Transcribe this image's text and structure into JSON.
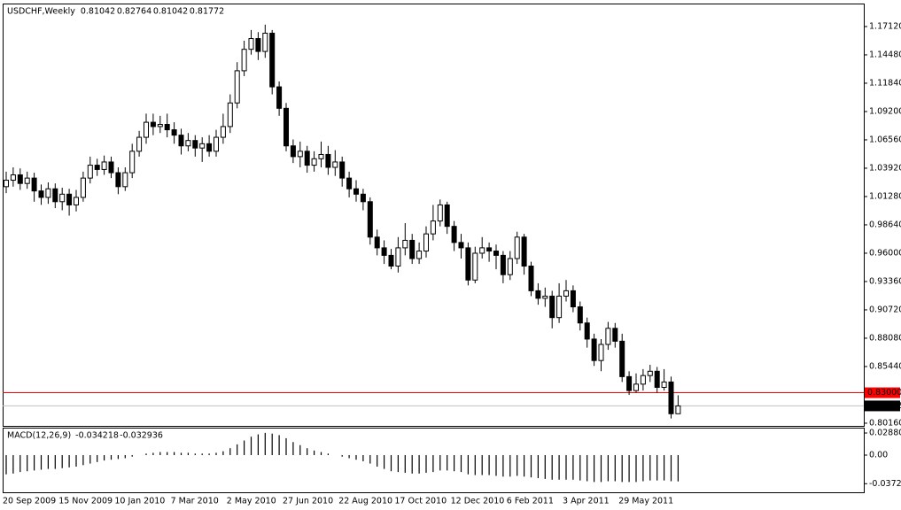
{
  "chart_data": [
    {
      "type": "candlestick",
      "title": "USDCHF,Weekly",
      "categories": [
        "20 Sep 2009",
        null,
        null,
        null,
        null,
        null,
        null,
        null,
        "15 Nov 2009",
        null,
        null,
        null,
        null,
        null,
        null,
        null,
        "10 Jan 2010",
        null,
        null,
        null,
        null,
        null,
        null,
        null,
        "7 Mar 2010",
        null,
        null,
        null,
        null,
        null,
        null,
        null,
        "2 May 2010",
        null,
        null,
        null,
        null,
        null,
        null,
        null,
        "27 Jun 2010",
        null,
        null,
        null,
        null,
        null,
        null,
        null,
        "22 Aug 2010",
        null,
        null,
        null,
        null,
        null,
        null,
        null,
        "17 Oct 2010",
        null,
        null,
        null,
        null,
        null,
        null,
        null,
        "12 Dec 2010",
        null,
        null,
        null,
        null,
        null,
        null,
        null,
        "6 Feb 2011",
        null,
        null,
        null,
        null,
        null,
        null,
        null,
        "3 Apr 2011",
        null,
        null,
        null,
        null,
        null,
        null,
        null,
        "29 May 2011",
        null,
        null,
        null,
        null,
        null,
        null,
        null,
        null
      ],
      "open": [
        1.022,
        1.028,
        1.033,
        1.025,
        1.03,
        1.018,
        1.012,
        1.02,
        1.008,
        1.015,
        1.005,
        1.012,
        1.03,
        1.042,
        1.038,
        1.045,
        1.035,
        1.022,
        1.035,
        1.055,
        1.068,
        1.082,
        1.078,
        1.08,
        1.075,
        1.07,
        1.06,
        1.065,
        1.058,
        1.062,
        1.055,
        1.068,
        1.078,
        1.1,
        1.13,
        1.15,
        1.16,
        1.148,
        1.165,
        1.115,
        1.095,
        1.06,
        1.05,
        1.055,
        1.042,
        1.048,
        1.052,
        1.04,
        1.045,
        1.03,
        1.02,
        1.015,
        1.008,
        0.975,
        0.965,
        0.958,
        0.948,
        0.965,
        0.972,
        0.955,
        0.962,
        0.978,
        0.99,
        1.005,
        0.985,
        0.97,
        0.965,
        0.935,
        0.96,
        0.965,
        0.962,
        0.958,
        0.94,
        0.955,
        0.975,
        0.948,
        0.925,
        0.918,
        0.92,
        0.9,
        0.92,
        0.925,
        0.91,
        0.895,
        0.88,
        0.86,
        0.875,
        0.89,
        0.878,
        0.845,
        0.832,
        0.838,
        0.846,
        0.85,
        0.835,
        0.84,
        0.81042
      ],
      "high": [
        1.036,
        1.04,
        1.039,
        1.036,
        1.035,
        1.024,
        1.026,
        1.025,
        1.021,
        1.02,
        1.019,
        1.036,
        1.05,
        1.048,
        1.051,
        1.05,
        1.04,
        1.04,
        1.062,
        1.074,
        1.09,
        1.09,
        1.088,
        1.09,
        1.082,
        1.076,
        1.072,
        1.07,
        1.068,
        1.07,
        1.075,
        1.09,
        1.108,
        1.138,
        1.158,
        1.168,
        1.166,
        1.173,
        1.168,
        1.12,
        1.1,
        1.066,
        1.064,
        1.06,
        1.055,
        1.064,
        1.06,
        1.056,
        1.05,
        1.036,
        1.028,
        1.02,
        1.012,
        0.982,
        0.972,
        0.964,
        0.975,
        0.988,
        0.978,
        0.97,
        0.985,
        1.005,
        1.01,
        1.008,
        0.99,
        0.978,
        0.97,
        0.966,
        0.975,
        0.97,
        0.968,
        0.962,
        0.962,
        0.98,
        0.978,
        0.952,
        0.932,
        0.928,
        0.925,
        0.932,
        0.935,
        0.93,
        0.915,
        0.9,
        0.885,
        0.88,
        0.896,
        0.895,
        0.885,
        0.85,
        0.848,
        0.852,
        0.856,
        0.854,
        0.852,
        0.845,
        0.82764
      ],
      "low": [
        1.016,
        1.022,
        1.019,
        1.02,
        1.008,
        1.005,
        1.006,
        1.002,
        1.0,
        0.995,
        0.999,
        1.008,
        1.025,
        1.032,
        1.033,
        1.03,
        1.015,
        1.018,
        1.03,
        1.05,
        1.062,
        1.07,
        1.072,
        1.068,
        1.062,
        1.052,
        1.055,
        1.05,
        1.045,
        1.05,
        1.05,
        1.062,
        1.072,
        1.095,
        1.125,
        1.145,
        1.14,
        1.142,
        1.108,
        1.088,
        1.055,
        1.044,
        1.04,
        1.035,
        1.036,
        1.04,
        1.033,
        1.032,
        1.022,
        1.012,
        1.008,
        1.0,
        0.968,
        0.958,
        0.95,
        0.945,
        0.942,
        0.958,
        0.95,
        0.95,
        0.956,
        0.972,
        0.985,
        0.978,
        0.962,
        0.955,
        0.93,
        0.932,
        0.955,
        0.952,
        0.945,
        0.932,
        0.935,
        0.95,
        0.94,
        0.92,
        0.912,
        0.91,
        0.89,
        0.895,
        0.915,
        0.905,
        0.888,
        0.872,
        0.855,
        0.85,
        0.87,
        0.872,
        0.84,
        0.828,
        0.83,
        0.832,
        0.84,
        0.83,
        0.832,
        0.806,
        0.81042
      ],
      "close": [
        1.028,
        1.033,
        1.025,
        1.03,
        1.018,
        1.012,
        1.02,
        1.008,
        1.015,
        1.005,
        1.012,
        1.03,
        1.042,
        1.038,
        1.045,
        1.035,
        1.022,
        1.035,
        1.055,
        1.068,
        1.082,
        1.078,
        1.08,
        1.075,
        1.07,
        1.06,
        1.065,
        1.058,
        1.062,
        1.055,
        1.068,
        1.078,
        1.1,
        1.13,
        1.15,
        1.16,
        1.148,
        1.165,
        1.115,
        1.095,
        1.06,
        1.05,
        1.055,
        1.042,
        1.048,
        1.052,
        1.04,
        1.045,
        1.03,
        1.02,
        1.015,
        1.008,
        0.975,
        0.965,
        0.958,
        0.948,
        0.965,
        0.972,
        0.955,
        0.962,
        0.978,
        0.99,
        1.005,
        0.985,
        0.97,
        0.965,
        0.935,
        0.96,
        0.965,
        0.962,
        0.958,
        0.94,
        0.955,
        0.975,
        0.948,
        0.925,
        0.918,
        0.92,
        0.9,
        0.92,
        0.925,
        0.91,
        0.895,
        0.88,
        0.86,
        0.875,
        0.89,
        0.878,
        0.845,
        0.832,
        0.838,
        0.846,
        0.85,
        0.835,
        0.84,
        0.81042,
        0.81772
      ],
      "up_color": "#ffffff",
      "down_color": "#000000",
      "ylim": [
        0.7991,
        1.1918
      ],
      "yticks": [
        {
          "value": 1.1712,
          "label": "1.17120"
        },
        {
          "value": 1.1448,
          "label": "1.14480"
        },
        {
          "value": 1.1184,
          "label": "1.11840"
        },
        {
          "value": 1.092,
          "label": "1.09200"
        },
        {
          "value": 1.0656,
          "label": "1.06560"
        },
        {
          "value": 1.0392,
          "label": "1.03920"
        },
        {
          "value": 1.0128,
          "label": "1.01280"
        },
        {
          "value": 0.9864,
          "label": "0.98640"
        },
        {
          "value": 0.96,
          "label": "0.96000"
        },
        {
          "value": 0.9336,
          "label": "0.93360"
        },
        {
          "value": 0.9072,
          "label": "0.90720"
        },
        {
          "value": 0.8808,
          "label": "0.88080"
        },
        {
          "value": 0.8544,
          "label": "0.85440"
        },
        {
          "value": 0.8016,
          "label": "0.80160"
        }
      ],
      "hline": {
        "value": 0.83,
        "label": "0.83000",
        "color": "#ff0000"
      }
    },
    {
      "type": "bar",
      "title": "MACD(12,26,9)",
      "values": [
        -0.025,
        -0.024,
        -0.022,
        -0.021,
        -0.02,
        -0.019,
        -0.018,
        -0.018,
        -0.017,
        -0.016,
        -0.015,
        -0.013,
        -0.011,
        -0.009,
        -0.007,
        -0.006,
        -0.005,
        -0.004,
        -0.002,
        0.0,
        0.002,
        0.003,
        0.004,
        0.004,
        0.004,
        0.003,
        0.003,
        0.002,
        0.002,
        0.002,
        0.003,
        0.005,
        0.009,
        0.014,
        0.019,
        0.024,
        0.027,
        0.029,
        0.028,
        0.026,
        0.022,
        0.017,
        0.013,
        0.009,
        0.006,
        0.004,
        0.002,
        0.0,
        -0.002,
        -0.004,
        -0.006,
        -0.008,
        -0.011,
        -0.015,
        -0.018,
        -0.021,
        -0.022,
        -0.023,
        -0.024,
        -0.024,
        -0.023,
        -0.022,
        -0.02,
        -0.02,
        -0.021,
        -0.022,
        -0.025,
        -0.026,
        -0.026,
        -0.026,
        -0.027,
        -0.028,
        -0.028,
        -0.027,
        -0.028,
        -0.029,
        -0.03,
        -0.031,
        -0.032,
        -0.032,
        -0.032,
        -0.032,
        -0.033,
        -0.034,
        -0.035,
        -0.035,
        -0.034,
        -0.034,
        -0.035,
        -0.035,
        -0.035,
        -0.034,
        -0.033,
        -0.033,
        -0.033,
        -0.034,
        -0.034218
      ],
      "signal": -0.032936,
      "color": "#000000",
      "ylim": [
        -0.0484,
        0.0346
      ],
      "yticks": [
        0.028802,
        {
          "value": 0,
          "label": "0.00"
        },
        -0.03721
      ]
    }
  ]
}
